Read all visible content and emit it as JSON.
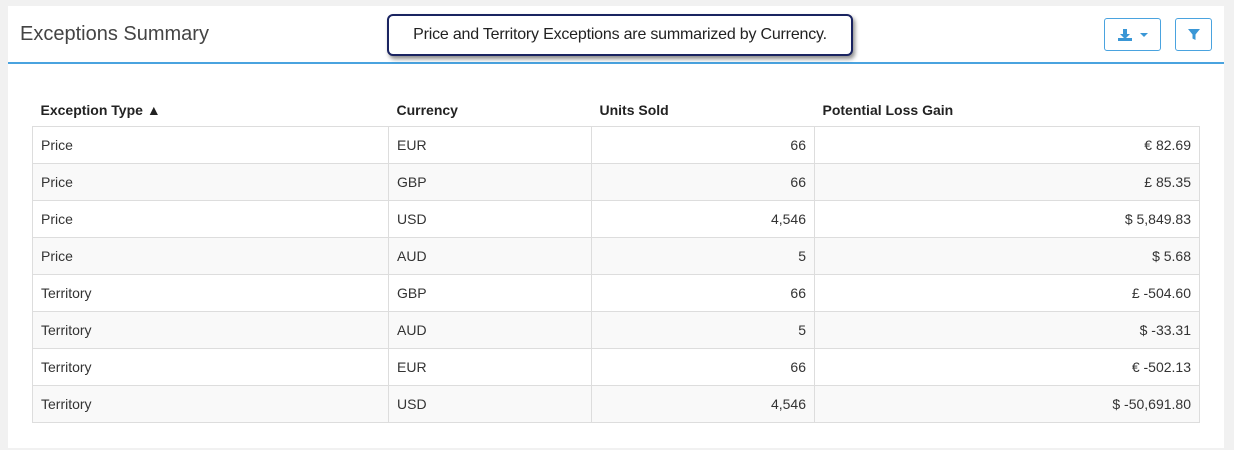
{
  "panel": {
    "title": "Exceptions Summary",
    "callout": "Price and Territory Exceptions are summarized by Currency."
  },
  "toolbar": {
    "download_icon": "download-icon",
    "filter_icon": "filter-icon",
    "accent_color": "#3a97d6"
  },
  "table": {
    "headers": [
      "Exception Type ▲",
      "Currency",
      "Units Sold",
      "Potential Loss Gain"
    ],
    "rows": [
      {
        "type": "Price",
        "currency": "EUR",
        "units": "66",
        "loss": "€ 82.69"
      },
      {
        "type": "Price",
        "currency": "GBP",
        "units": "66",
        "loss": "£ 85.35"
      },
      {
        "type": "Price",
        "currency": "USD",
        "units": "4,546",
        "loss": "$ 5,849.83"
      },
      {
        "type": "Price",
        "currency": "AUD",
        "units": "5",
        "loss": "$ 5.68"
      },
      {
        "type": "Territory",
        "currency": "GBP",
        "units": "66",
        "loss": "£ -504.60"
      },
      {
        "type": "Territory",
        "currency": "AUD",
        "units": "5",
        "loss": "$ -33.31"
      },
      {
        "type": "Territory",
        "currency": "EUR",
        "units": "66",
        "loss": "€ -502.13"
      },
      {
        "type": "Territory",
        "currency": "USD",
        "units": "4,546",
        "loss": "$ -50,691.80"
      }
    ]
  }
}
